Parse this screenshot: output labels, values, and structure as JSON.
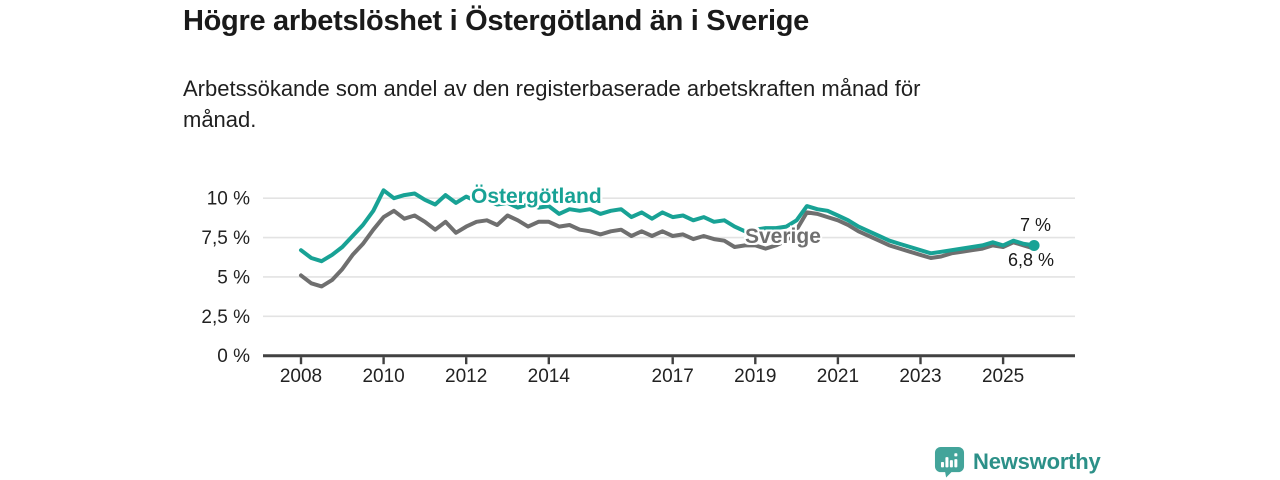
{
  "header": {
    "title": "Högre arbetslöshet i Östergötland än i Sverige",
    "subtitle": "Arbetssökande som andel av den registerbaserade arbetskraften månad för\nmånad."
  },
  "chart_data": {
    "type": "line",
    "unit": "%",
    "x_start": 2008.0,
    "x_step_years": 0.25,
    "x_end": 2025.75,
    "series": [
      {
        "name": "Östergötland",
        "color": "#18a295",
        "end_label": "7 %",
        "end_value": 7.0,
        "end_dot": true,
        "values": [
          6.7,
          6.2,
          6.0,
          6.4,
          6.9,
          7.6,
          8.3,
          9.2,
          10.5,
          10.0,
          10.2,
          10.3,
          9.9,
          9.6,
          10.2,
          9.7,
          10.1,
          9.8,
          9.9,
          9.6,
          9.7,
          9.4,
          9.6,
          9.4,
          9.5,
          9.0,
          9.3,
          9.2,
          9.3,
          9.0,
          9.2,
          9.3,
          8.8,
          9.1,
          8.7,
          9.1,
          8.8,
          8.9,
          8.6,
          8.8,
          8.5,
          8.6,
          8.2,
          7.9,
          8.0,
          8.1,
          8.1,
          8.2,
          8.6,
          9.5,
          9.3,
          9.2,
          8.9,
          8.6,
          8.2,
          7.9,
          7.6,
          7.3,
          7.1,
          6.9,
          6.7,
          6.5,
          6.6,
          6.7,
          6.8,
          6.9,
          7.0,
          7.2,
          7.0,
          7.3,
          7.1,
          7.0
        ]
      },
      {
        "name": "Sverige",
        "color": "#6f6f6f",
        "end_label": "6,8 %",
        "end_value": 6.8,
        "end_dot": false,
        "values": [
          5.1,
          4.6,
          4.4,
          4.8,
          5.5,
          6.4,
          7.1,
          8.0,
          8.8,
          9.2,
          8.7,
          8.9,
          8.5,
          8.0,
          8.5,
          7.8,
          8.2,
          8.5,
          8.6,
          8.3,
          8.9,
          8.6,
          8.2,
          8.5,
          8.5,
          8.2,
          8.3,
          8.0,
          7.9,
          7.7,
          7.9,
          8.0,
          7.6,
          7.9,
          7.6,
          7.9,
          7.6,
          7.7,
          7.4,
          7.6,
          7.4,
          7.3,
          6.9,
          7.0,
          7.0,
          6.8,
          7.0,
          7.3,
          8.0,
          9.1,
          9.0,
          8.8,
          8.6,
          8.3,
          7.9,
          7.6,
          7.3,
          7.0,
          6.8,
          6.6,
          6.4,
          6.2,
          6.3,
          6.5,
          6.6,
          6.7,
          6.8,
          7.0,
          6.9,
          7.2,
          7.0,
          6.8
        ]
      }
    ],
    "y_ticks": [
      {
        "value": 0,
        "label": "0 %"
      },
      {
        "value": 2.5,
        "label": "2,5 %"
      },
      {
        "value": 5,
        "label": "5 %"
      },
      {
        "value": 7.5,
        "label": "7,5 %"
      },
      {
        "value": 10,
        "label": "10 %"
      }
    ],
    "x_ticks": [
      {
        "value": 2008,
        "label": "2008"
      },
      {
        "value": 2010,
        "label": "2010"
      },
      {
        "value": 2012,
        "label": "2012"
      },
      {
        "value": 2014,
        "label": "2014"
      },
      {
        "value": 2017,
        "label": "2017"
      },
      {
        "value": 2019,
        "label": "2019"
      },
      {
        "value": 2021,
        "label": "2021"
      },
      {
        "value": 2023,
        "label": "2023"
      },
      {
        "value": 2025,
        "label": "2025"
      }
    ],
    "ylim": [
      0,
      11.3
    ],
    "grid": "horizontal",
    "legend_position": "inline-labels",
    "colors": {
      "grid": "#e3e3e3",
      "axis": "#414141",
      "tick_label": "#222222",
      "end_label": "#1a1a1a"
    }
  },
  "footer": {
    "brand": "Newsworthy",
    "brand_text_color": "#2c9088",
    "logo_color": "#43a49a"
  }
}
